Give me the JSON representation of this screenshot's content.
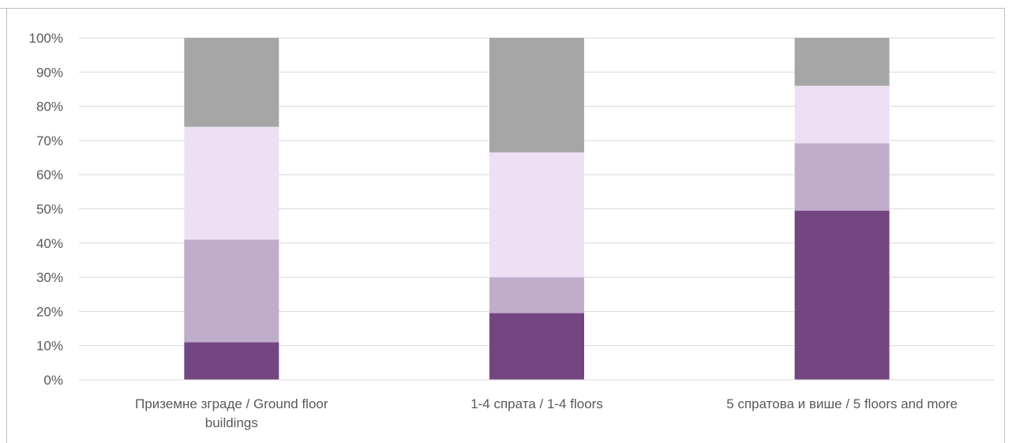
{
  "chart_data": {
    "type": "bar",
    "stacked": true,
    "percent_stacked": true,
    "title": "",
    "xlabel": "",
    "ylabel": "",
    "ylim": [
      0,
      100
    ],
    "y_ticks": [
      "0%",
      "10%",
      "20%",
      "30%",
      "40%",
      "50%",
      "60%",
      "70%",
      "80%",
      "90%",
      "100%"
    ],
    "grid": true,
    "legend": "none visible",
    "categories": [
      [
        "Приземне зграде / Ground floor",
        "buildings"
      ],
      [
        "1-4 спрата / 1-4 floors"
      ],
      [
        "5 спратова и више / 5 floors and more"
      ]
    ],
    "series": [
      {
        "values": [
          11,
          19.5,
          49.5
        ],
        "color": "#734682"
      },
      {
        "values": [
          30,
          10.5,
          19.7
        ],
        "color": "#c0accb"
      },
      {
        "values": [
          33,
          36.5,
          16.8
        ],
        "color": "#ede0f4"
      },
      {
        "values": [
          26,
          33.5,
          14
        ],
        "color": "#a6a6a6"
      }
    ]
  }
}
